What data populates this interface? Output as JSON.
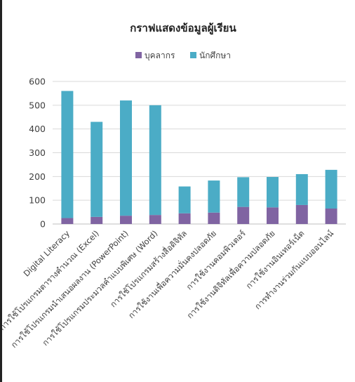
{
  "chart_data": {
    "type": "bar",
    "stacked": true,
    "title": "กราฟแสดงข้อมูลผู้เรียน",
    "legend_position": "top",
    "grid": true,
    "ylim": [
      0,
      600
    ],
    "yticks": [
      0,
      100,
      200,
      300,
      400,
      500,
      600
    ],
    "categories": [
      "Digital Literacy",
      "การใช้โปรแกรมตารางคำนวณ (Excel)",
      "การใช้โปรแกรมนำเสนอผลงาน (PowerPoint)",
      "การใช้โปรแกรมประมวลคำแบบพิเศษ (Word)",
      "การใช้โปรแกรมสร้างสื่อดิจิทัล",
      "การใช้งานเพื่อความมั่นคงปลอดภัย",
      "การใช้งานคอมพิวเตอร์",
      "การใช้งานดิจิทัลเพื่อความปลอดภัย",
      "การใช้งานอินเทอร์เน็ต",
      "การทำงานร่วมกันแบบออนไลน์"
    ],
    "series": [
      {
        "name": "บุคลากร",
        "color": "#8064a2",
        "values": [
          25,
          30,
          35,
          38,
          45,
          48,
          72,
          70,
          80,
          65
        ]
      },
      {
        "name": "นักศึกษา",
        "color": "#4bacc6",
        "values": [
          535,
          400,
          485,
          462,
          113,
          135,
          125,
          128,
          130,
          163
        ]
      }
    ]
  }
}
